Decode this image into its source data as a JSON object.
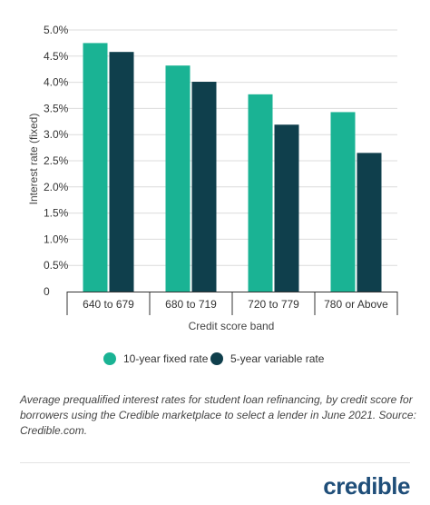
{
  "chart_data": {
    "type": "bar",
    "categories": [
      "640 to 679",
      "680 to 719",
      "720 to 779",
      "780 or Above"
    ],
    "series": [
      {
        "name": "10-year fixed rate",
        "color": "#1ab394",
        "values": [
          4.75,
          4.32,
          3.77,
          3.43
        ]
      },
      {
        "name": "5-year variable rate",
        "color": "#0f3f4c",
        "values": [
          4.58,
          4.01,
          3.19,
          2.65
        ]
      }
    ],
    "title": "",
    "xlabel": "Credit score band",
    "ylabel": "Interest rate (fixed)",
    "ylim": [
      0,
      5
    ],
    "yticks": [
      0,
      0.5,
      1,
      1.5,
      2,
      2.5,
      3,
      3.5,
      4,
      4.5,
      5
    ],
    "ytick_labels": [
      "0",
      "0.5%",
      "1.0%",
      "1.5%",
      "2.0%",
      "2.5%",
      "3.0%",
      "3.5%",
      "4.0%",
      "4.5%",
      "5.0%"
    ],
    "grid": true,
    "legend_position": "bottom"
  },
  "caption": "Average prequalified interest rates for student loan refinancing, by credit score for borrowers using the Credible marketplace to select a lender in June 2021. Source: Credible.com.",
  "logo_text": "credible"
}
